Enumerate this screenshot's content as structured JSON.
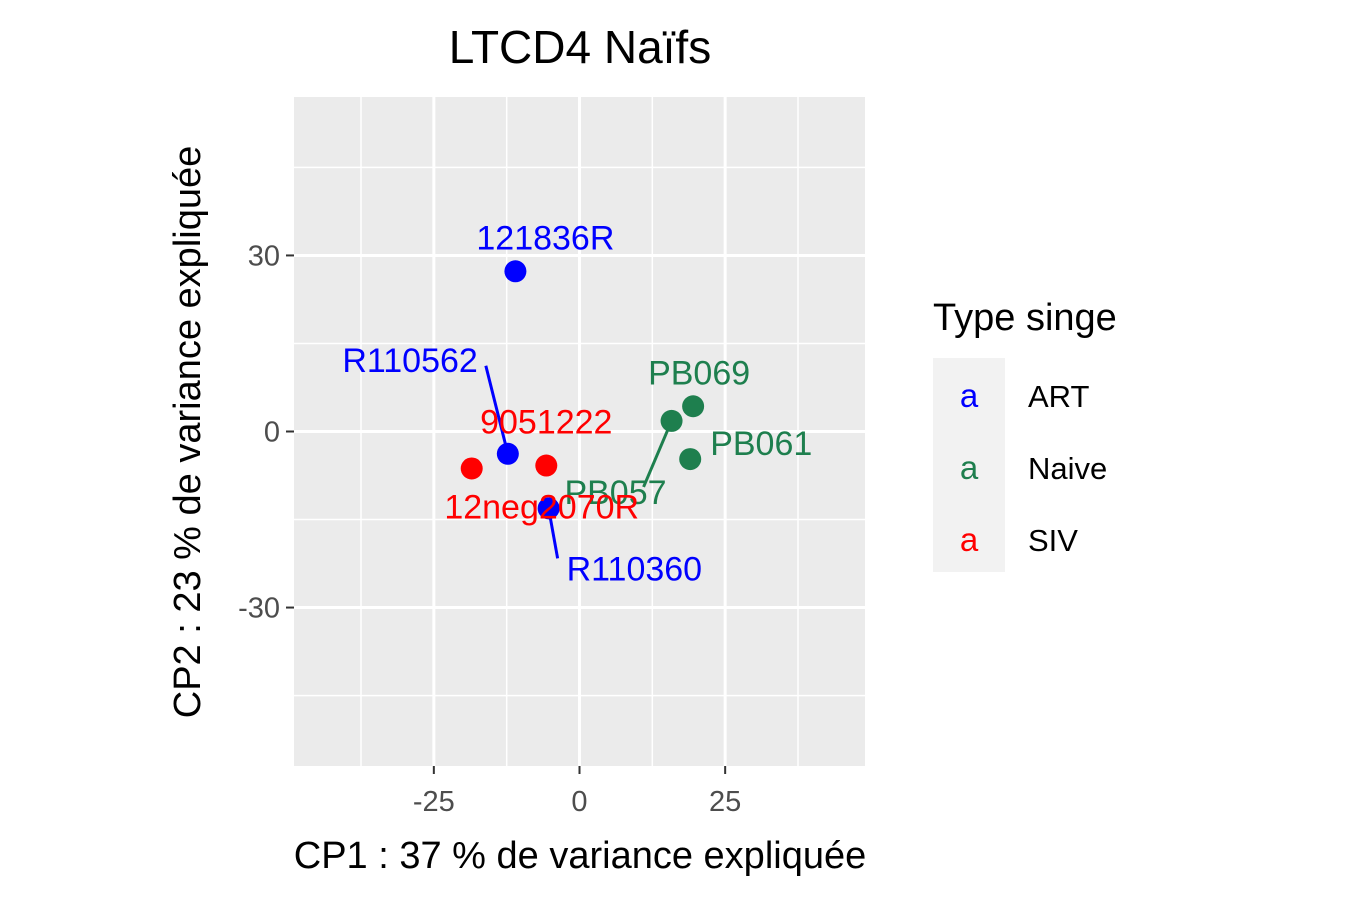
{
  "chart_data": {
    "type": "scatter",
    "title": "LTCD4 Naïfs",
    "xlabel": "CP1 : 37 % de variance expliquée",
    "ylabel": "CP2 : 23 % de variance expliquée",
    "xlim": [
      -49,
      49
    ],
    "ylim": [
      -57,
      57
    ],
    "xticks": [
      -25,
      0,
      25
    ],
    "yticks": [
      30,
      0,
      -30
    ],
    "xtick_labels": [
      "-25",
      "0",
      "25"
    ],
    "ytick_labels": [
      "30",
      "0",
      "-30"
    ],
    "grid": true,
    "legend": {
      "title": "Type singe",
      "position": "right",
      "key_glyph": "a",
      "entries": [
        {
          "label": "ART",
          "color": "#0000ff"
        },
        {
          "label": "Naive",
          "color": "#1e7f4e"
        },
        {
          "label": "SIV",
          "color": "#ff0000"
        }
      ]
    },
    "series": [
      {
        "name": "ART",
        "color": "#0000ff",
        "points": [
          {
            "x": -11,
            "y": 27.3,
            "label": "121836R"
          },
          {
            "x": -12.3,
            "y": -3.8,
            "label": "R110562"
          },
          {
            "x": -5.3,
            "y": -13.1,
            "label": "R110360"
          }
        ]
      },
      {
        "name": "Naive",
        "color": "#1e7f4e",
        "points": [
          {
            "x": 19.5,
            "y": 4.3,
            "label": "PB069"
          },
          {
            "x": 19,
            "y": -4.7,
            "label": "PB061"
          },
          {
            "x": 15.8,
            "y": 1.8,
            "label": "PB057"
          }
        ]
      },
      {
        "name": "SIV",
        "color": "#ff0000",
        "points": [
          {
            "x": -5.7,
            "y": -5.8,
            "label": "9051222"
          },
          {
            "x": -18.5,
            "y": -6.3,
            "label": "12neg2070R"
          }
        ]
      }
    ]
  }
}
